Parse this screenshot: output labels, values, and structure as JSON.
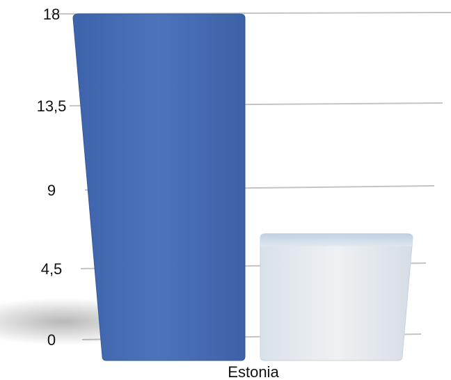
{
  "chart_data": {
    "type": "bar",
    "title": "",
    "xlabel": "",
    "ylabel": "",
    "categories": [
      "Estonia"
    ],
    "series": [
      {
        "values": [
          18
        ],
        "color": "#4a6fb5"
      },
      {
        "values": [
          6.5
        ],
        "color": "#e4e9ee"
      }
    ],
    "ylim": [
      0,
      18
    ],
    "yticks": [
      "0",
      "4,5",
      "9",
      "13,5",
      "18"
    ],
    "grid": true,
    "legend": "none",
    "style": "3d-perspective"
  }
}
